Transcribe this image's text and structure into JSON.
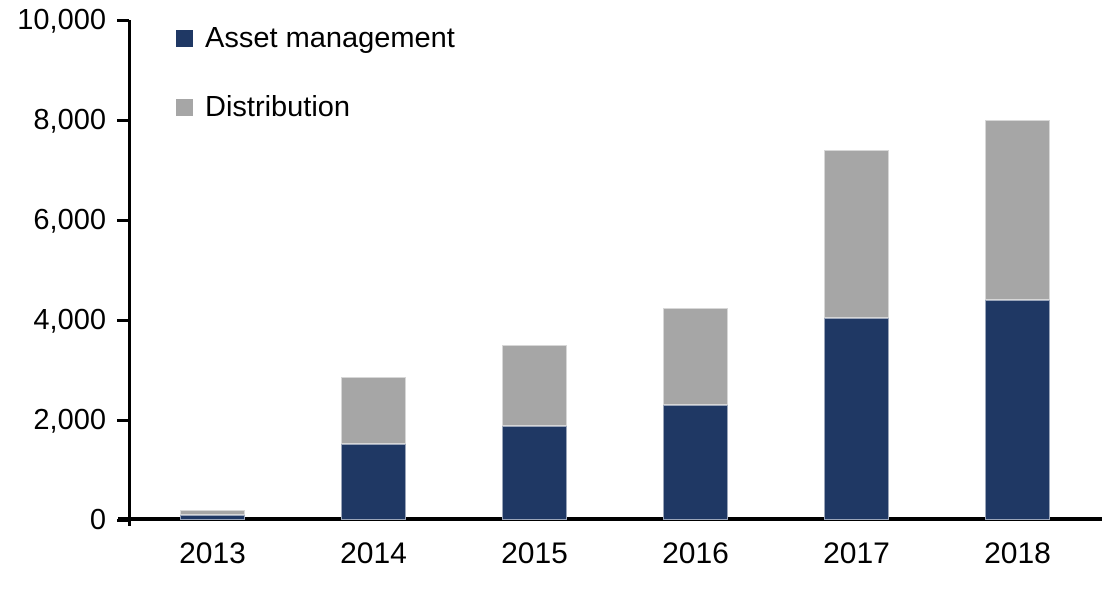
{
  "chart_data": {
    "type": "bar",
    "stacked": true,
    "title": "",
    "xlabel": "",
    "ylabel": "",
    "categories": [
      "2013",
      "2014",
      "2015",
      "2016",
      "2017",
      "2018"
    ],
    "series": [
      {
        "name": "Asset management",
        "color": "#1F3864",
        "values": [
          110,
          1530,
          1880,
          2300,
          4050,
          4400
        ]
      },
      {
        "name": "Distribution",
        "color": "#A6A6A6",
        "values": [
          90,
          1330,
          1620,
          1950,
          3350,
          3600
        ]
      }
    ],
    "stack_totals": [
      200,
      2860,
      3500,
      4250,
      7400,
      8000
    ],
    "ylim": [
      0,
      10000
    ],
    "y_ticks": [
      {
        "value": 0,
        "label": "0"
      },
      {
        "value": 2000,
        "label": "2,000"
      },
      {
        "value": 4000,
        "label": "4,000"
      },
      {
        "value": 6000,
        "label": "6,000"
      },
      {
        "value": 8000,
        "label": "8,000"
      },
      {
        "value": 10000,
        "label": "10,000"
      }
    ],
    "legend_position": "top-left",
    "grid": false,
    "axis_color": "#000000",
    "background_color": "#FFFFFF"
  }
}
